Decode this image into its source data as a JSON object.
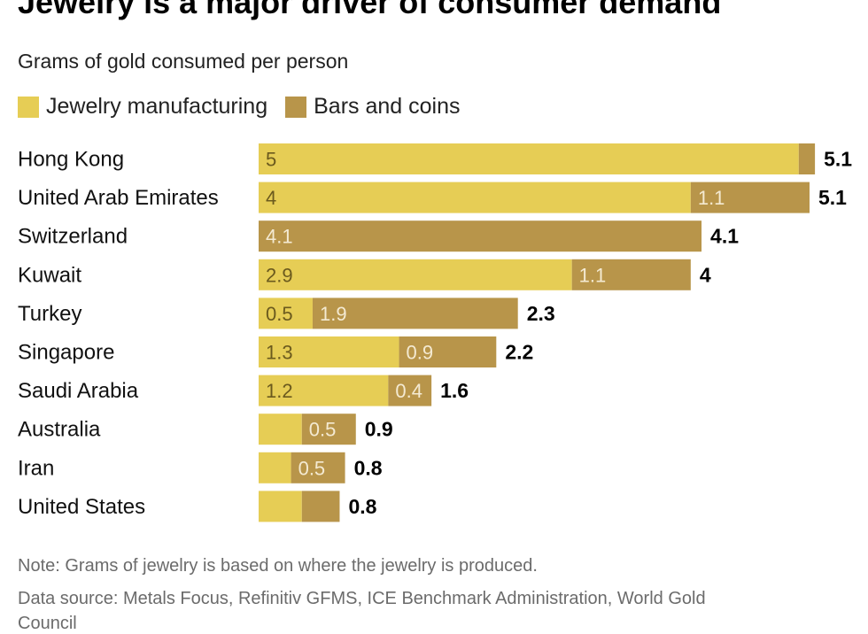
{
  "header": {
    "title": "Jewelry is a major driver of consumer demand",
    "subtitle": "Grams of gold consumed per person"
  },
  "legend": {
    "items": [
      {
        "label": "Jewelry manufacturing",
        "color": "#e6cd55"
      },
      {
        "label": "Bars and coins",
        "color": "#b8954a"
      }
    ]
  },
  "chart_data": {
    "type": "bar",
    "orientation": "horizontal",
    "stacked": true,
    "title": "Jewelry is a major driver of consumer demand",
    "subtitle": "Grams of gold consumed per person",
    "xlabel": "",
    "ylabel": "",
    "xlim": [
      0,
      5.1
    ],
    "grid": false,
    "legend_position": "top-left",
    "categories": [
      "Hong Kong",
      "United Arab Emirates",
      "Switzerland",
      "Kuwait",
      "Turkey",
      "Singapore",
      "Saudi Arabia",
      "Australia",
      "Iran",
      "United States"
    ],
    "series": [
      {
        "name": "Jewelry manufacturing",
        "color": "#e6cd55",
        "values": [
          5.0,
          4.0,
          0.0,
          2.9,
          0.5,
          1.3,
          1.2,
          0.4,
          0.3,
          0.4
        ],
        "labels": [
          "5",
          "4",
          "",
          "2.9",
          "0.5",
          "1.3",
          "1.2",
          "",
          "",
          ""
        ]
      },
      {
        "name": "Bars and coins",
        "color": "#b8954a",
        "values": [
          0.15,
          1.1,
          4.1,
          1.1,
          1.9,
          0.9,
          0.4,
          0.5,
          0.5,
          0.35
        ],
        "labels": [
          "",
          "1.1",
          "4.1",
          "1.1",
          "1.9",
          "0.9",
          "0.4",
          "0.5",
          "0.5",
          ""
        ]
      }
    ],
    "totals": [
      "5.1",
      "5.1",
      "4.1",
      "4",
      "2.3",
      "2.2",
      "1.6",
      "0.9",
      "0.8",
      "0.8"
    ]
  },
  "footer": {
    "note": "Note: Grams of jewelry is based on where the jewelry is produced.",
    "source": "Data source: Metals Focus, Refinitiv GFMS, ICE Benchmark Administration, World Gold",
    "source_cont": "Council"
  }
}
